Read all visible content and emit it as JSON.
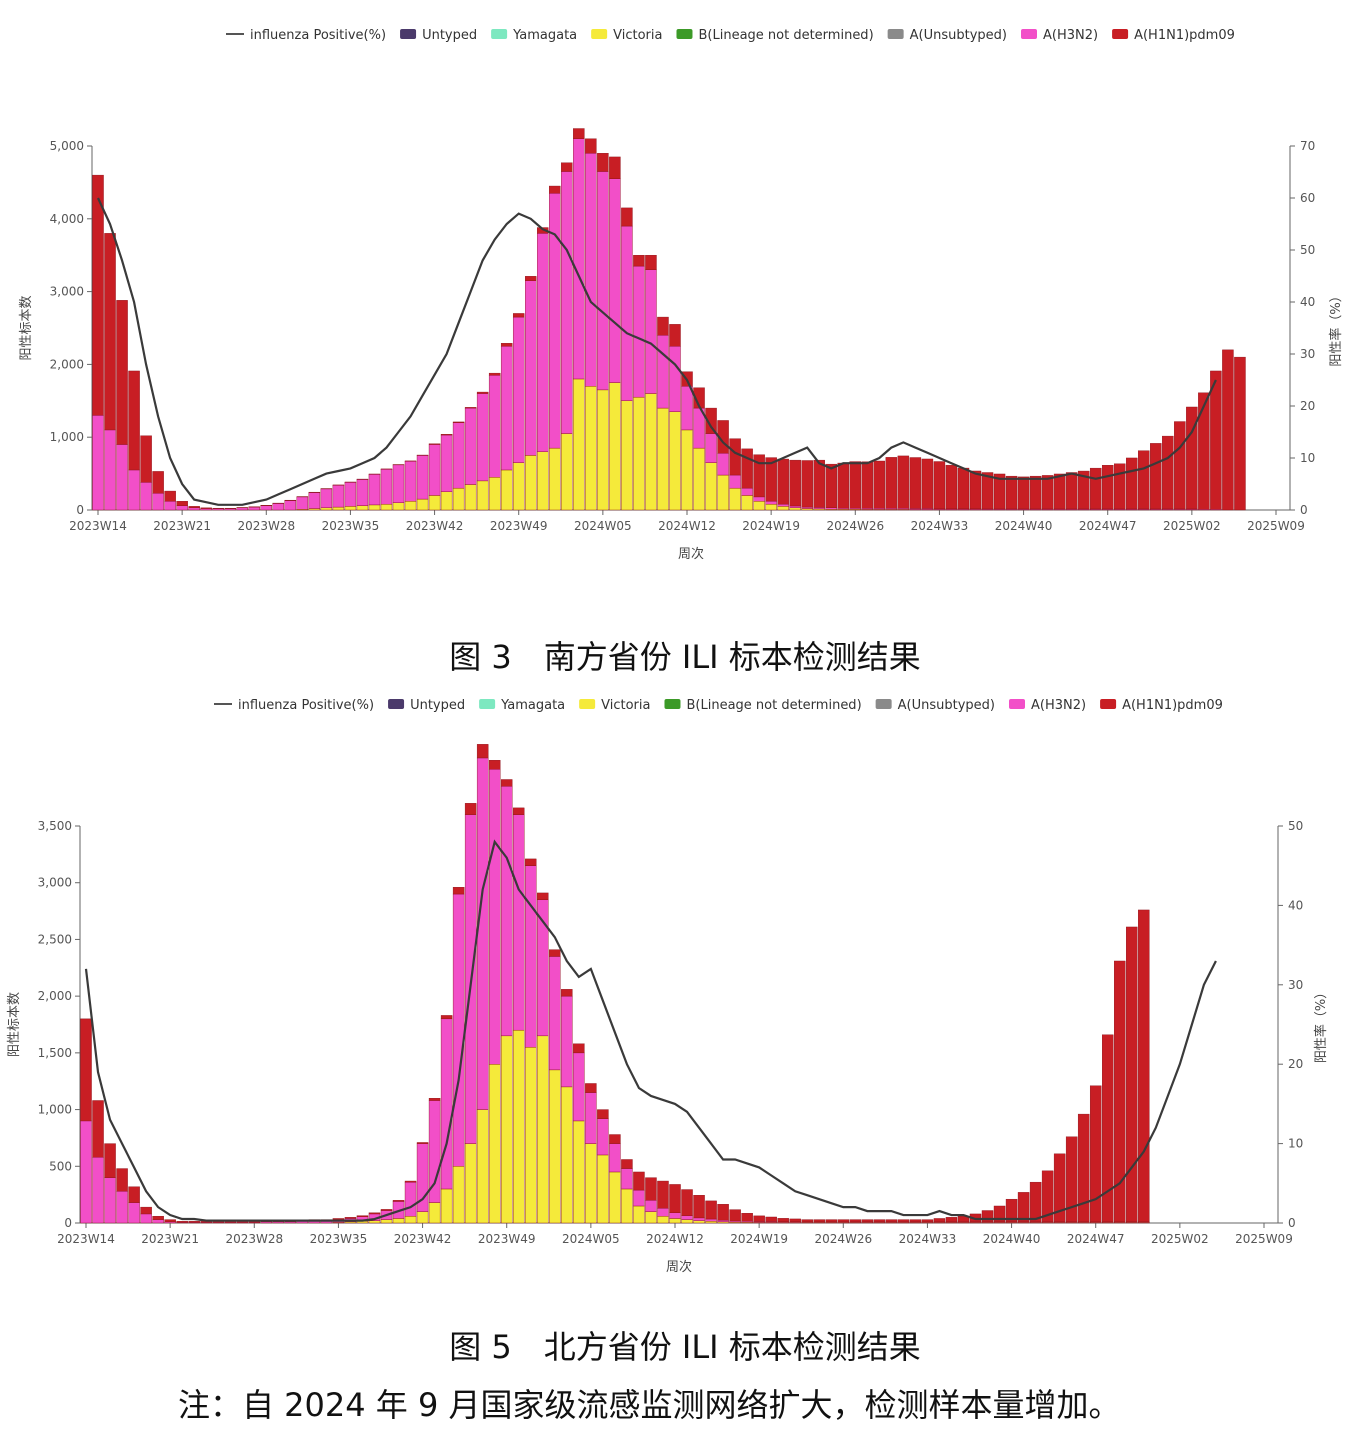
{
  "legend": {
    "line": "influenza Positive(%)",
    "items": [
      {
        "name": "Untyped",
        "color": "#4b3a6b"
      },
      {
        "name": "Yamagata",
        "color": "#7de8c0"
      },
      {
        "name": "Victoria",
        "color": "#f5ea3a"
      },
      {
        "name": "B(Lineage not determined)",
        "color": "#3c9a28"
      },
      {
        "name": "A(Unsubtyped)",
        "color": "#8a8a8a"
      },
      {
        "name": "A(H3N2)",
        "color": "#f24fc8"
      },
      {
        "name": "A(H1N1)pdm09",
        "color": "#c81e24"
      }
    ]
  },
  "charts": {
    "south": {
      "caption": "图 3　南方省份 ILI 标本检测结果",
      "ylabel": "阳性标本数",
      "y2label": "阳性率（%）",
      "xlabel": "周次"
    },
    "north": {
      "caption": "图 5　北方省份 ILI 标本检测结果",
      "ylabel": "阳性标本数",
      "y2label": "阳性率（%）",
      "xlabel": "周次"
    }
  },
  "note": "注：自 2024 年 9 月国家级流感监测网络扩大，检测样本量增加。",
  "chart_data": [
    {
      "id": "south",
      "type": "bar",
      "stacked": true,
      "x_ticks": [
        "2023W14",
        "2023W21",
        "2023W28",
        "2023W35",
        "2023W42",
        "2023W49",
        "2024W05",
        "2024W12",
        "2024W19",
        "2024W26",
        "2024W33",
        "2024W40",
        "2024W47",
        "2025W02",
        "2025W09"
      ],
      "ylim": [
        0,
        5000
      ],
      "y_ticks": [
        0,
        1000,
        2000,
        3000,
        4000,
        5000
      ],
      "y2lim": [
        0,
        70
      ],
      "y2_ticks": [
        0,
        10,
        20,
        30,
        40,
        50,
        60,
        70
      ],
      "h3n2": [
        1300,
        1100,
        900,
        550,
        380,
        230,
        120,
        60,
        30,
        20,
        20,
        20,
        30,
        40,
        60,
        90,
        130,
        170,
        220,
        260,
        300,
        330,
        360,
        420,
        480,
        520,
        550,
        600,
        700,
        780,
        900,
        1050,
        1200,
        1400,
        1700,
        2000,
        2400,
        3000,
        3500,
        3600,
        3300,
        3200,
        3000,
        2800,
        2400,
        1800,
        1700,
        1000,
        900,
        600,
        550,
        400,
        300,
        180,
        100,
        60,
        40,
        30,
        25,
        20,
        20,
        20,
        15,
        15,
        15,
        15,
        15,
        15,
        15,
        15,
        10,
        10,
        10,
        10,
        10,
        10,
        10,
        10,
        10,
        10,
        10,
        10,
        10,
        10,
        10,
        10,
        10,
        10,
        10,
        10,
        10,
        10,
        10,
        10
      ],
      "victoria": [
        0,
        0,
        0,
        0,
        0,
        0,
        0,
        0,
        0,
        0,
        0,
        0,
        0,
        0,
        0,
        0,
        0,
        10,
        20,
        30,
        40,
        50,
        60,
        70,
        80,
        100,
        120,
        150,
        200,
        250,
        300,
        350,
        400,
        450,
        550,
        650,
        750,
        800,
        850,
        1050,
        1800,
        1700,
        1650,
        1750,
        1500,
        1550,
        1600,
        1400,
        1350,
        1100,
        850,
        650,
        480,
        300,
        200,
        120,
        80,
        50,
        30,
        20,
        15,
        10,
        10,
        10,
        8,
        8,
        8,
        8,
        6,
        6,
        6,
        6,
        6,
        6,
        5,
        5,
        5,
        5,
        5,
        5,
        5,
        5,
        5,
        5,
        5,
        5,
        5,
        5,
        5,
        5,
        5,
        5
      ],
      "h1n1": [
        3300,
        2700,
        1980,
        1360,
        640,
        300,
        140,
        60,
        20,
        10,
        5,
        5,
        5,
        5,
        5,
        5,
        5,
        5,
        5,
        5,
        5,
        5,
        5,
        5,
        5,
        5,
        5,
        5,
        10,
        10,
        10,
        10,
        20,
        30,
        40,
        50,
        60,
        80,
        100,
        120,
        140,
        200,
        250,
        300,
        250,
        150,
        200,
        250,
        300,
        200,
        280,
        350,
        450,
        500,
        540,
        580,
        600,
        620,
        630,
        640,
        650,
        600,
        620,
        640,
        640,
        650,
        700,
        720,
        700,
        680,
        650,
        600,
        560,
        520,
        500,
        480,
        450,
        440,
        450,
        460,
        480,
        500,
        520,
        560,
        600,
        620,
        700,
        800,
        900,
        1000,
        1200,
        1400,
        1600,
        1900,
        2200,
        2100
      ],
      "positive_pct": [
        60,
        55,
        48,
        40,
        28,
        18,
        10,
        5,
        2,
        1.5,
        1,
        1,
        1,
        1.5,
        2,
        3,
        4,
        5,
        6,
        7,
        7.5,
        8,
        9,
        10,
        12,
        15,
        18,
        22,
        26,
        30,
        36,
        42,
        48,
        52,
        55,
        57,
        56,
        54,
        53,
        50,
        45,
        40,
        38,
        36,
        34,
        33,
        32,
        30,
        28,
        25,
        20,
        16,
        13,
        11,
        10,
        9,
        9,
        10,
        11,
        12,
        9,
        8,
        9,
        9,
        9,
        10,
        12,
        13,
        12,
        11,
        10,
        9,
        8,
        7,
        6.5,
        6,
        6,
        6,
        6,
        6,
        6.5,
        7,
        6.5,
        6,
        6.5,
        7,
        7.5,
        8,
        9,
        10,
        12,
        15,
        20,
        25
      ],
      "x_axis_weeks": 100
    },
    {
      "id": "north",
      "type": "bar",
      "stacked": true,
      "x_ticks": [
        "2023W14",
        "2023W21",
        "2023W28",
        "2023W35",
        "2023W42",
        "2023W49",
        "2024W05",
        "2024W12",
        "2024W19",
        "2024W26",
        "2024W33",
        "2024W40",
        "2024W47",
        "2025W02",
        "2025W09"
      ],
      "ylim": [
        0,
        3500
      ],
      "y_ticks": [
        0,
        500,
        1000,
        1500,
        2000,
        2500,
        3000,
        3500
      ],
      "y2lim": [
        0,
        50
      ],
      "y2_ticks": [
        0,
        10,
        20,
        30,
        40,
        50
      ],
      "h3n2": [
        900,
        580,
        400,
        280,
        180,
        80,
        30,
        10,
        5,
        5,
        5,
        5,
        5,
        5,
        5,
        10,
        10,
        10,
        15,
        20,
        20,
        25,
        30,
        40,
        60,
        80,
        150,
        300,
        600,
        900,
        1500,
        2400,
        2900,
        3100,
        2600,
        2200,
        1900,
        1600,
        1200,
        1000,
        800,
        600,
        450,
        320,
        250,
        180,
        140,
        100,
        70,
        50,
        35,
        25,
        20,
        15,
        10,
        10,
        8,
        8,
        6,
        6,
        5,
        5,
        5,
        5,
        5,
        5,
        5,
        5,
        5,
        5,
        5,
        5,
        5,
        5,
        5,
        5,
        5,
        5,
        5,
        5,
        5,
        5,
        5,
        5,
        5,
        5,
        5,
        5,
        5,
        5,
        5,
        5
      ],
      "victoria": [
        0,
        0,
        0,
        0,
        0,
        0,
        0,
        0,
        0,
        0,
        0,
        0,
        0,
        0,
        0,
        0,
        0,
        0,
        0,
        0,
        0,
        5,
        10,
        15,
        20,
        30,
        40,
        60,
        100,
        180,
        300,
        500,
        700,
        1000,
        1400,
        1650,
        1700,
        1550,
        1650,
        1350,
        1200,
        900,
        700,
        600,
        450,
        300,
        150,
        100,
        60,
        40,
        30,
        20,
        15,
        10,
        8,
        6,
        5,
        5,
        5,
        5,
        5,
        5,
        5,
        5,
        5,
        5,
        5,
        5,
        5,
        5,
        5,
        5,
        5,
        5,
        5,
        5,
        5,
        5,
        5,
        5,
        5,
        5,
        5,
        5,
        5,
        5,
        5,
        5,
        5,
        5,
        5,
        5
      ],
      "h1n1": [
        900,
        500,
        300,
        200,
        140,
        60,
        30,
        20,
        10,
        10,
        10,
        10,
        10,
        10,
        10,
        10,
        10,
        10,
        10,
        10,
        10,
        10,
        10,
        10,
        10,
        10,
        10,
        10,
        10,
        20,
        30,
        60,
        100,
        120,
        80,
        60,
        60,
        60,
        60,
        60,
        60,
        80,
        80,
        80,
        80,
        80,
        160,
        200,
        240,
        250,
        230,
        200,
        160,
        140,
        100,
        70,
        50,
        40,
        30,
        25,
        20,
        20,
        20,
        20,
        20,
        20,
        20,
        20,
        20,
        20,
        20,
        30,
        40,
        50,
        70,
        100,
        140,
        200,
        260,
        350,
        450,
        600,
        750,
        950,
        1200,
        1650,
        2300,
        2600,
        2750
      ],
      "positive_pct": [
        32,
        19,
        13,
        10,
        7,
        4,
        2,
        1,
        0.5,
        0.5,
        0.3,
        0.3,
        0.3,
        0.3,
        0.3,
        0.3,
        0.3,
        0.3,
        0.3,
        0.3,
        0.3,
        0.3,
        0.3,
        0.3,
        0.5,
        1,
        1.5,
        2,
        3,
        5,
        10,
        18,
        30,
        42,
        48,
        46,
        42,
        40,
        38,
        36,
        33,
        31,
        32,
        28,
        24,
        20,
        17,
        16,
        15.5,
        15,
        14,
        12,
        10,
        8,
        8,
        7.5,
        7,
        6,
        5,
        4,
        3.5,
        3,
        2.5,
        2,
        2,
        1.5,
        1.5,
        1.5,
        1,
        1,
        1,
        1.5,
        1,
        1,
        0.5,
        0.5,
        0.5,
        0.5,
        0.5,
        0.5,
        1,
        1.5,
        2,
        2.5,
        3,
        4,
        5,
        7,
        9,
        12,
        16,
        20,
        25,
        30,
        33
      ],
      "x_axis_weeks": 100
    }
  ]
}
